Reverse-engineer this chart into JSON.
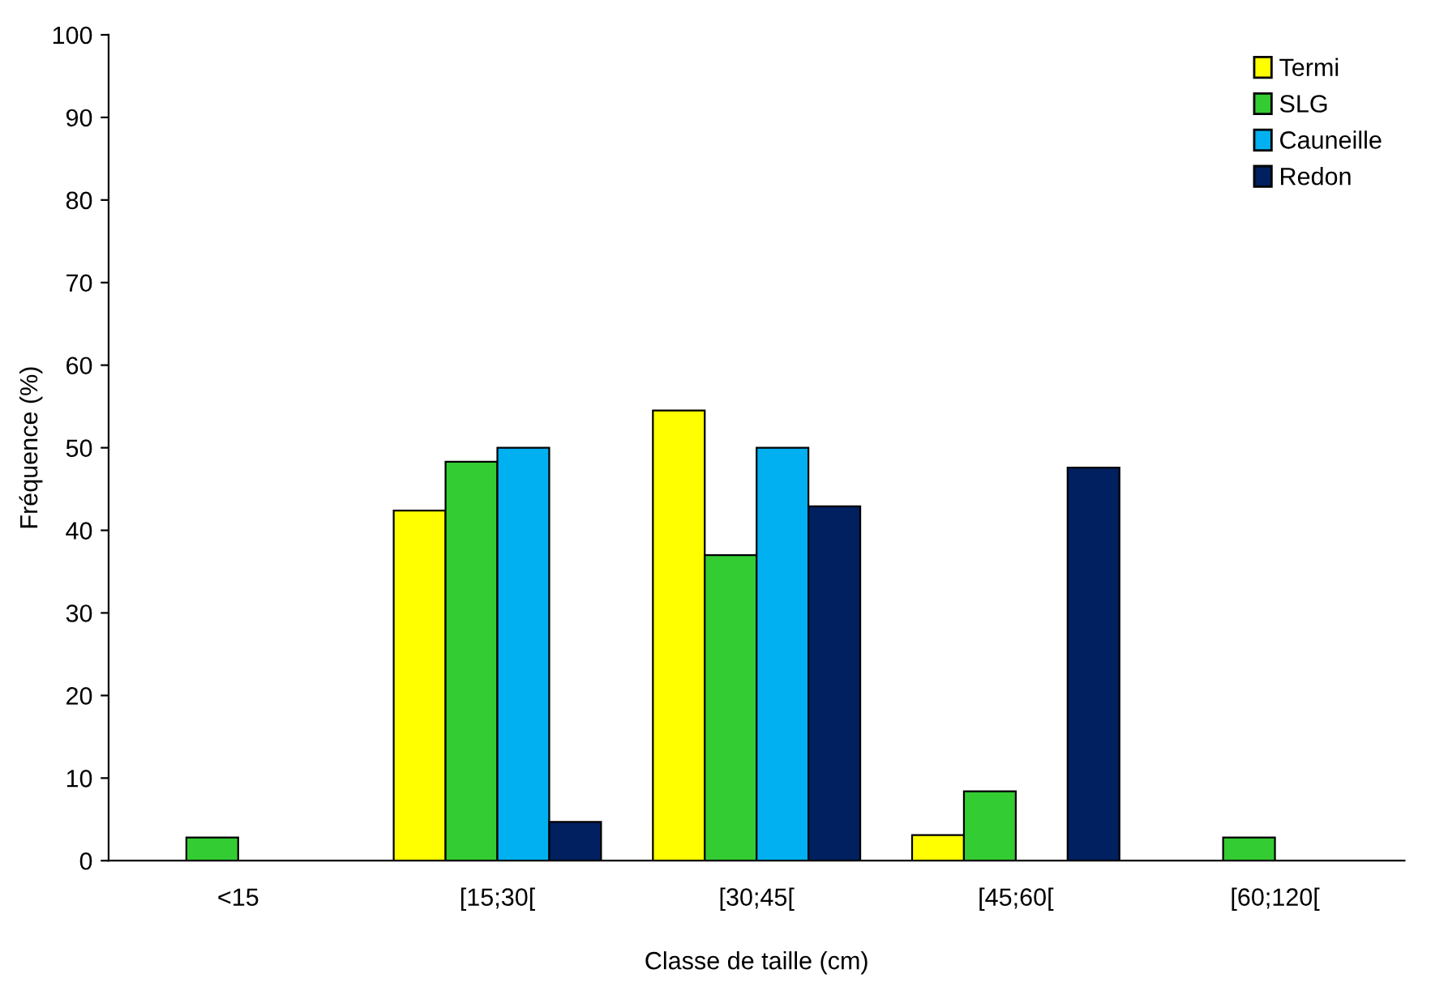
{
  "chart_data": {
    "type": "bar",
    "xlabel": "Classe de taille (cm)",
    "ylabel": "Fréquence (%)",
    "categories": [
      "<15",
      "[15;30[",
      "[30;45[",
      "[45;60[",
      "[60;120["
    ],
    "series": [
      {
        "name": "Termi",
        "color": "#ffff00",
        "values": [
          null,
          42.4,
          54.5,
          3.1,
          null
        ]
      },
      {
        "name": "SLG",
        "color": "#33cc33",
        "values": [
          2.8,
          48.3,
          37.0,
          8.4,
          2.8
        ]
      },
      {
        "name": "Cauneille",
        "color": "#00b0f0",
        "values": [
          null,
          50.0,
          50.0,
          null,
          null
        ]
      },
      {
        "name": "Redon",
        "color": "#002060",
        "values": [
          null,
          4.7,
          42.9,
          47.6,
          null
        ]
      }
    ],
    "ylim": [
      0,
      100
    ],
    "yticks": [
      0,
      10,
      20,
      30,
      40,
      50,
      60,
      70,
      80,
      90,
      100
    ],
    "grid": false,
    "legend": "top right"
  }
}
